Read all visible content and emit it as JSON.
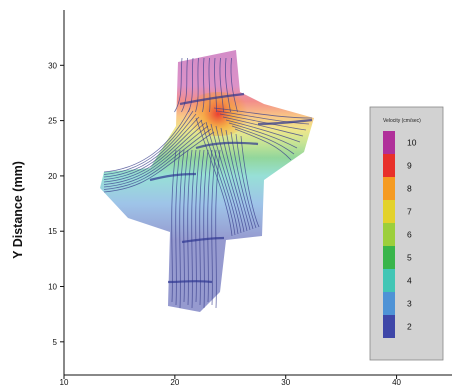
{
  "chart_data": {
    "type": "streamline",
    "title": "",
    "xlabel": "",
    "ylabel": "Y Distance (mm)",
    "xlim": [
      10,
      45
    ],
    "ylim": [
      2,
      35
    ],
    "x_ticks": [
      "10",
      "20",
      "30",
      "40"
    ],
    "y_ticks": [
      "5",
      "10",
      "15",
      "20",
      "25",
      "30"
    ],
    "legend": {
      "title": "Velocity (cm/sec)",
      "placement": "right",
      "levels": [
        {
          "label": "10",
          "color": "#b0309a"
        },
        {
          "label": "9",
          "color": "#e8302a"
        },
        {
          "label": "8",
          "color": "#f59b22"
        },
        {
          "label": "7",
          "color": "#e3d22c"
        },
        {
          "label": "6",
          "color": "#9ccf3c"
        },
        {
          "label": "5",
          "color": "#39b54a"
        },
        {
          "label": "4",
          "color": "#42c6b5"
        },
        {
          "label": "3",
          "color": "#4f93d6"
        },
        {
          "label": "2",
          "color": "#3f47a8"
        }
      ]
    },
    "grid": false
  }
}
